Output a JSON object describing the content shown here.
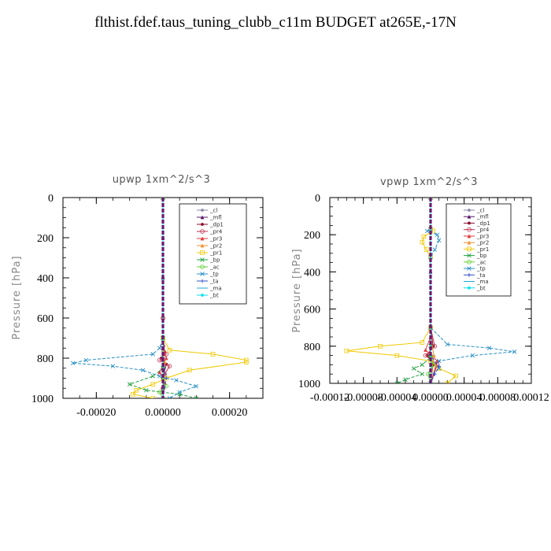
{
  "title": "flthist.fdef.taus_tuning_clubb_c11m  BUDGET at265E,-17N",
  "chart_data": [
    {
      "type": "line",
      "title": "upwp   1xm^2/s^3",
      "ylabel": "Pressure [hPa]",
      "xlim": [
        -0.0003,
        0.0003
      ],
      "ylim": [
        1000,
        0
      ],
      "xticks": [
        -0.0002,
        0.0,
        0.0002
      ],
      "xtick_labels": [
        "-0.00020",
        "0.00000",
        "0.00020"
      ],
      "yticks": [
        0,
        200,
        400,
        600,
        800,
        1000
      ],
      "ytick_labels": [
        "0",
        "200",
        "400",
        "600",
        "800",
        "1000"
      ],
      "legend_position": "top-right",
      "series": [
        {
          "name": "_cl",
          "color": "#8a8aa8",
          "marker": "dot",
          "points": [
            [
              0,
              0
            ],
            [
              0,
              200
            ],
            [
              0,
              400
            ],
            [
              0,
              600
            ],
            [
              0,
              750
            ],
            [
              2e-06,
              850
            ],
            [
              0,
              950
            ],
            [
              0,
              1000
            ]
          ]
        },
        {
          "name": "_mfl",
          "color": "#5a1a6e",
          "marker": "tri",
          "points": [
            [
              0,
              0
            ],
            [
              0,
              200
            ],
            [
              0,
              400
            ],
            [
              0,
              600
            ],
            [
              0,
              750
            ],
            [
              0,
              850
            ],
            [
              0,
              950
            ],
            [
              0,
              1000
            ]
          ]
        },
        {
          "name": "_dp1",
          "color": "#8a1030",
          "marker": "dot",
          "points": [
            [
              0,
              0
            ],
            [
              0,
              400
            ],
            [
              0,
              700
            ],
            [
              5e-06,
              770
            ],
            [
              -5e-06,
              800
            ],
            [
              1e-05,
              830
            ],
            [
              0,
              900
            ],
            [
              0,
              1000
            ]
          ]
        },
        {
          "name": "_pr4",
          "color": "#c0304a",
          "marker": "circle",
          "points": [
            [
              0,
              0
            ],
            [
              0,
              600
            ],
            [
              0,
              740
            ],
            [
              1e-05,
              780
            ],
            [
              -1e-05,
              810
            ],
            [
              2e-05,
              840
            ],
            [
              5e-06,
              880
            ],
            [
              0,
              950
            ],
            [
              0,
              1000
            ]
          ]
        },
        {
          "name": "_pr3",
          "color": "#e03a3a",
          "marker": "tri",
          "points": [
            [
              0,
              0
            ],
            [
              0,
              600
            ],
            [
              0,
              750
            ],
            [
              1e-05,
              800
            ],
            [
              -1e-05,
              870
            ],
            [
              5e-06,
              920
            ],
            [
              0,
              1000
            ]
          ]
        },
        {
          "name": "_pr2",
          "color": "#f09030",
          "marker": "tri",
          "points": [
            [
              0,
              0
            ],
            [
              0,
              700
            ],
            [
              0,
              760
            ],
            [
              5e-06,
              820
            ],
            [
              0,
              900
            ],
            [
              0,
              1000
            ]
          ]
        },
        {
          "name": "_pr1",
          "color": "#f0c800",
          "marker": "square",
          "points": [
            [
              0,
              0
            ],
            [
              0,
              700
            ],
            [
              2e-05,
              760
            ],
            [
              0.00015,
              780
            ],
            [
              0.00025,
              810
            ],
            [
              0.00025,
              820
            ],
            [
              8e-05,
              860
            ],
            [
              1e-05,
              900
            ],
            [
              -3e-05,
              930
            ],
            [
              -8e-05,
              960
            ],
            [
              -9e-05,
              980
            ],
            [
              -3e-05,
              1000
            ]
          ]
        },
        {
          "name": "_bp",
          "color": "#20a040",
          "marker": "x",
          "points": [
            [
              0,
              0
            ],
            [
              0,
              700
            ],
            [
              0,
              850
            ],
            [
              -3e-05,
              890
            ],
            [
              -0.0001,
              930
            ],
            [
              -5e-05,
              960
            ],
            [
              5e-05,
              980
            ],
            [
              0.0001,
              1000
            ]
          ]
        },
        {
          "name": "_ac",
          "color": "#60d030",
          "marker": "circle",
          "points": [
            [
              0,
              0
            ],
            [
              0,
              900
            ],
            [
              1e-05,
              940
            ],
            [
              -1e-05,
              970
            ],
            [
              0,
              1000
            ]
          ]
        },
        {
          "name": "_tp",
          "color": "#2890c8",
          "marker": "x",
          "points": [
            [
              0,
              0
            ],
            [
              0,
              700
            ],
            [
              -1e-05,
              750
            ],
            [
              -3e-05,
              780
            ],
            [
              -0.00023,
              810
            ],
            [
              -0.00027,
              825
            ],
            [
              -0.00015,
              840
            ],
            [
              -6e-05,
              860
            ],
            [
              -1e-05,
              890
            ],
            [
              4e-05,
              910
            ],
            [
              0.0001,
              940
            ],
            [
              5e-05,
              970
            ],
            [
              2e-05,
              1000
            ]
          ]
        },
        {
          "name": "_ta",
          "color": "#3050c8",
          "marker": "plus",
          "points": [
            [
              0,
              0
            ],
            [
              0,
              800
            ],
            [
              1e-05,
              900
            ],
            [
              0,
              1000
            ]
          ]
        },
        {
          "name": "_ma",
          "color": "#20a8d8",
          "marker": "dash",
          "points": [
            [
              0,
              0
            ],
            [
              0,
              1000
            ]
          ]
        },
        {
          "name": "_bt",
          "color": "#00e0f0",
          "marker": "diamond",
          "points": [
            [
              0,
              0
            ],
            [
              0,
              1000
            ]
          ]
        }
      ]
    },
    {
      "type": "line",
      "title": "vpwp   1xm^2/s^3",
      "ylabel": "Pressure [hPa]",
      "xlim": [
        -0.00012,
        0.00012
      ],
      "ylim": [
        1000,
        0
      ],
      "xticks": [
        -0.00012,
        -8e-05,
        -4e-05,
        0.0,
        4e-05,
        8e-05,
        0.00012
      ],
      "xtick_labels": [
        "-0.00012",
        "-0.00008",
        "-0.00004",
        "0.00000",
        "0.00004",
        "0.00008",
        "0.00012"
      ],
      "yticks": [
        0,
        200,
        400,
        600,
        800,
        1000
      ],
      "ytick_labels": [
        "0",
        "200",
        "400",
        "600",
        "800",
        "1000"
      ],
      "legend_position": "top-right",
      "series": [
        {
          "name": "_cl",
          "color": "#8a8aa8",
          "marker": "dot",
          "points": [
            [
              0,
              0
            ],
            [
              0,
              400
            ],
            [
              0,
              700
            ],
            [
              0,
              1000
            ]
          ]
        },
        {
          "name": "_mfl",
          "color": "#5a1a6e",
          "marker": "tri",
          "points": [
            [
              0,
              0
            ],
            [
              0,
              400
            ],
            [
              0,
              700
            ],
            [
              0,
              1000
            ]
          ]
        },
        {
          "name": "_dp1",
          "color": "#8a1030",
          "marker": "dot",
          "points": [
            [
              0,
              0
            ],
            [
              0,
              700
            ],
            [
              3e-06,
              800
            ],
            [
              -3e-06,
              850
            ],
            [
              3e-06,
              900
            ],
            [
              0,
              1000
            ]
          ]
        },
        {
          "name": "_pr4",
          "color": "#c0304a",
          "marker": "circle",
          "points": [
            [
              0,
              0
            ],
            [
              0,
              700
            ],
            [
              5e-06,
              800
            ],
            [
              -6e-06,
              850
            ],
            [
              8e-06,
              900
            ],
            [
              0,
              1000
            ]
          ]
        },
        {
          "name": "_pr3",
          "color": "#e03a3a",
          "marker": "tri",
          "points": [
            [
              0,
              0
            ],
            [
              0,
              750
            ],
            [
              -6e-06,
              820
            ],
            [
              8e-06,
              880
            ],
            [
              0,
              1000
            ]
          ]
        },
        {
          "name": "_pr2",
          "color": "#f09030",
          "marker": "tri",
          "points": [
            [
              0,
              0
            ],
            [
              0,
              750
            ],
            [
              4e-06,
              850
            ],
            [
              0,
              1000
            ]
          ]
        },
        {
          "name": "_pr1",
          "color": "#f0c800",
          "marker": "square",
          "points": [
            [
              0,
              0
            ],
            [
              0,
              170
            ],
            [
              3e-06,
              180
            ],
            [
              -8e-06,
              210
            ],
            [
              -1e-05,
              240
            ],
            [
              -5e-06,
              280
            ],
            [
              0,
              320
            ],
            [
              0,
              700
            ],
            [
              -1e-05,
              780
            ],
            [
              -6e-05,
              800
            ],
            [
              -0.0001,
              825
            ],
            [
              -4e-05,
              850
            ],
            [
              0,
              880
            ],
            [
              1e-05,
              920
            ],
            [
              3e-05,
              960
            ],
            [
              2e-05,
              1000
            ]
          ]
        },
        {
          "name": "_bp",
          "color": "#20a040",
          "marker": "x",
          "points": [
            [
              0,
              0
            ],
            [
              0,
              800
            ],
            [
              0,
              860
            ],
            [
              -1e-05,
              900
            ],
            [
              -2e-05,
              920
            ],
            [
              -1e-05,
              950
            ],
            [
              -3e-05,
              980
            ],
            [
              -4e-05,
              1000
            ]
          ]
        },
        {
          "name": "_ac",
          "color": "#60d030",
          "marker": "circle",
          "points": [
            [
              0,
              0
            ],
            [
              0,
              850
            ],
            [
              3e-06,
              900
            ],
            [
              -3e-06,
              950
            ],
            [
              0,
              1000
            ]
          ]
        },
        {
          "name": "_tp",
          "color": "#2890c8",
          "marker": "x",
          "points": [
            [
              0,
              0
            ],
            [
              0,
              170
            ],
            [
              -4e-06,
              180
            ],
            [
              8e-06,
              200
            ],
            [
              1e-05,
              230
            ],
            [
              5e-06,
              280
            ],
            [
              0,
              320
            ],
            [
              0,
              700
            ],
            [
              2e-05,
              790
            ],
            [
              7e-05,
              810
            ],
            [
              0.0001,
              830
            ],
            [
              5e-05,
              850
            ],
            [
              1e-05,
              880
            ],
            [
              1e-05,
              920
            ],
            [
              0,
              960
            ],
            [
              0,
              1000
            ]
          ]
        },
        {
          "name": "_ta",
          "color": "#3050c8",
          "marker": "plus",
          "points": [
            [
              0,
              0
            ],
            [
              0,
              850
            ],
            [
              1e-05,
              910
            ],
            [
              5e-06,
              950
            ],
            [
              0,
              1000
            ]
          ]
        },
        {
          "name": "_ma",
          "color": "#20a8d8",
          "marker": "dash",
          "points": [
            [
              0,
              0
            ],
            [
              0,
              1000
            ]
          ]
        },
        {
          "name": "_bt",
          "color": "#00e0f0",
          "marker": "diamond",
          "points": [
            [
              0,
              0
            ],
            [
              0,
              1000
            ]
          ]
        }
      ]
    }
  ]
}
